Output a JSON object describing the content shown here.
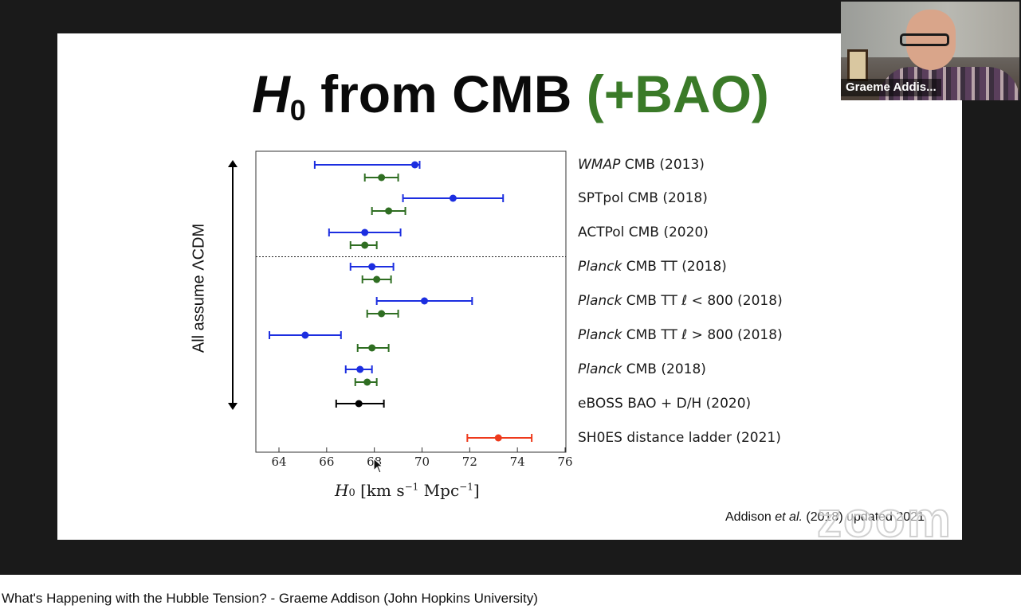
{
  "video": {
    "title": "What's Happening with the Hubble Tension? - Graeme Addison (John Hopkins University)"
  },
  "webcam": {
    "participant_name": "Graeme Addis..."
  },
  "slide": {
    "title_h": "H",
    "title_sub": "0",
    "title_main": " from CMB ",
    "title_accent": "(+BAO)",
    "axis_caption": "All assume ΛCDM",
    "citation_author": "Addison ",
    "citation_etal": "et al.",
    "citation_rest": " (2018) updated 2021",
    "watermark": "zoom"
  },
  "colors": {
    "cmb": "#1c2ee0",
    "bao": "#2f6e22",
    "eboss": "#000000",
    "shoes": "#ee3a1c",
    "accent_green": "#3a7a28"
  },
  "chart_data": {
    "type": "scatter",
    "xlabel": "H0 [km s^-1 Mpc^-1]",
    "x_tick_labels": [
      "64",
      "66",
      "68",
      "70",
      "72",
      "74",
      "76"
    ],
    "x_ticks": [
      64,
      66,
      68,
      70,
      72,
      74,
      76
    ],
    "xlim": [
      63,
      76
    ],
    "separator_after_group": 2,
    "groups": [
      {
        "label_italic": "WMAP",
        "label": " CMB (2013)",
        "points": [
          {
            "kind": "cmb",
            "value": 69.7,
            "low": 65.5,
            "high": 69.9
          },
          {
            "kind": "bao",
            "value": 68.3,
            "low": 67.6,
            "high": 69.0
          }
        ]
      },
      {
        "label_italic": "",
        "label": "SPTpol CMB (2018)",
        "points": [
          {
            "kind": "cmb",
            "value": 71.3,
            "low": 69.2,
            "high": 73.4
          },
          {
            "kind": "bao",
            "value": 68.6,
            "low": 67.9,
            "high": 69.3
          }
        ]
      },
      {
        "label_italic": "",
        "label": "ACTPol CMB (2020)",
        "points": [
          {
            "kind": "cmb",
            "value": 67.6,
            "low": 66.1,
            "high": 69.1
          },
          {
            "kind": "bao",
            "value": 67.6,
            "low": 67.0,
            "high": 68.1
          }
        ]
      },
      {
        "label_italic": "Planck",
        "label": " CMB TT (2018)",
        "points": [
          {
            "kind": "cmb",
            "value": 67.9,
            "low": 67.0,
            "high": 68.8
          },
          {
            "kind": "bao",
            "value": 68.1,
            "low": 67.5,
            "high": 68.7
          }
        ]
      },
      {
        "label_italic": "Planck",
        "label": " CMB TT ℓ < 800 (2018)",
        "points": [
          {
            "kind": "cmb",
            "value": 70.1,
            "low": 68.1,
            "high": 72.1
          },
          {
            "kind": "bao",
            "value": 68.3,
            "low": 67.7,
            "high": 69.0
          }
        ]
      },
      {
        "label_italic": "Planck",
        "label": " CMB TT ℓ > 800 (2018)",
        "points": [
          {
            "kind": "cmb",
            "value": 65.1,
            "low": 63.6,
            "high": 66.6
          },
          {
            "kind": "bao",
            "value": 67.9,
            "low": 67.3,
            "high": 68.6
          }
        ]
      },
      {
        "label_italic": "Planck",
        "label": " CMB (2018)",
        "points": [
          {
            "kind": "cmb",
            "value": 67.4,
            "low": 66.8,
            "high": 67.9
          },
          {
            "kind": "bao",
            "value": 67.7,
            "low": 67.2,
            "high": 68.1
          }
        ]
      },
      {
        "label_italic": "",
        "label": "eBOSS BAO + D/H (2020)",
        "points": [
          {
            "kind": "eboss",
            "value": 67.35,
            "low": 66.4,
            "high": 68.4
          }
        ]
      },
      {
        "label_italic": "",
        "label": "SH0ES distance ladder (2021)",
        "points": [
          {
            "kind": "shoes",
            "value": 73.2,
            "low": 71.9,
            "high": 74.6
          }
        ]
      }
    ]
  }
}
